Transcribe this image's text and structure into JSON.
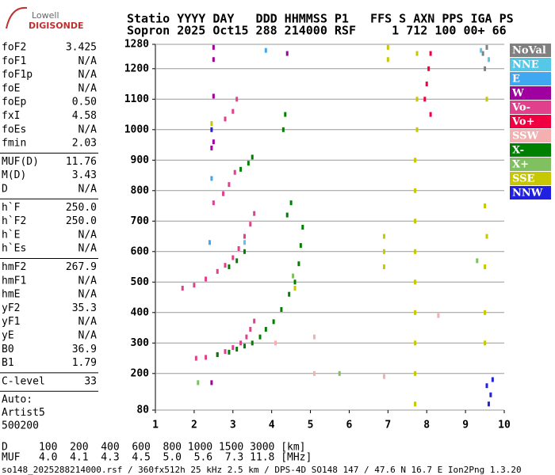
{
  "logo": {
    "top": "Lowell",
    "bottom": "DIGISONDE"
  },
  "header": [
    "Statio YYYY DAY   DDD HHMMSS P1   FFS S AXN PPS IGA PS",
    "Sopron 2025 Oct15 288 214000 RSF     1 712 100 00+ 66"
  ],
  "params": [
    [
      [
        "foF2",
        "3.425"
      ],
      [
        "foF1",
        "N/A"
      ],
      [
        "foF1p",
        "N/A"
      ],
      [
        "foE",
        "N/A"
      ],
      [
        "foEp",
        "0.50"
      ],
      [
        "fxI",
        "4.58"
      ],
      [
        "foEs",
        "N/A"
      ],
      [
        "fmin",
        "2.03"
      ]
    ],
    [
      [
        "MUF(D)",
        "11.76"
      ],
      [
        "M(D)",
        "3.43"
      ],
      [
        "D",
        "N/A"
      ]
    ],
    [
      [
        "h`F",
        "250.0"
      ],
      [
        "h`F2",
        "250.0"
      ],
      [
        "h`E",
        "N/A"
      ],
      [
        "h`Es",
        "N/A"
      ]
    ],
    [
      [
        "hmF2",
        "267.9"
      ],
      [
        "hmF1",
        "N/A"
      ],
      [
        "hmE",
        "N/A"
      ],
      [
        "yF2",
        "35.3"
      ],
      [
        "yF1",
        "N/A"
      ],
      [
        "yE",
        "N/A"
      ],
      [
        "B0",
        "36.9"
      ],
      [
        "B1",
        "1.79"
      ]
    ],
    [
      [
        "C-level",
        "33"
      ]
    ]
  ],
  "auto": [
    "Auto:",
    "Artist5",
    "500200"
  ],
  "footer": [
    "D     100  200  400  600  800 1000 1500 3000 [km]",
    "MUF   4.0  4.1  4.3  4.5  5.0  5.6  7.3 11.8 [MHz]",
    "so148_2025288214000.rsf / 360fx512h 25 kHz 2.5 km / DPS-4D SO148 147 / 47.6 N 16.7 E Ion2Png 1.3.20"
  ],
  "chart_data": {
    "type": "scatter",
    "xlim": [
      1,
      10
    ],
    "xticks": [
      1,
      2,
      3,
      4,
      5,
      6,
      7,
      8,
      9,
      10
    ],
    "ylim": [
      80,
      1280
    ],
    "yticks": [
      80,
      200,
      300,
      400,
      500,
      600,
      700,
      800,
      900,
      1000,
      1100,
      1200,
      1280
    ],
    "grid": true,
    "series": [
      {
        "name": "NoVal",
        "color": "#808080",
        "x": [
          9.45,
          9.5,
          9.55
        ],
        "y": [
          1250,
          1200,
          1270
        ]
      },
      {
        "name": "NNE",
        "color": "#55c8e8",
        "x": [
          9.4,
          9.6,
          3.3
        ],
        "y": [
          1260,
          1230,
          630
        ]
      },
      {
        "name": "E",
        "color": "#40a8f0",
        "x": [
          2.4,
          3.85,
          2.45
        ],
        "y": [
          630,
          1260,
          840
        ]
      },
      {
        "name": "W",
        "color": "#a000a0",
        "x": [
          2.5,
          2.5,
          2.5,
          2.45,
          2.5,
          2.45,
          4.4
        ],
        "y": [
          1270,
          1230,
          1110,
          940,
          960,
          170,
          1250
        ]
      },
      {
        "name": "Vo-",
        "color": "#e0408c",
        "x": [
          2.05,
          2.3,
          2.6,
          2.8,
          3.0,
          3.2,
          3.35,
          3.45,
          3.55,
          1.7,
          2.0,
          2.3,
          2.6,
          2.8,
          3.0,
          3.15,
          3.3,
          3.45,
          3.55,
          2.5,
          2.75,
          2.9,
          3.05,
          2.8,
          3.0,
          3.1
        ],
        "y": [
          250,
          253,
          262,
          272,
          285,
          300,
          320,
          345,
          372,
          480,
          490,
          510,
          535,
          555,
          580,
          610,
          650,
          690,
          725,
          760,
          790,
          820,
          860,
          1035,
          1060,
          1100
        ]
      },
      {
        "name": "Vo+",
        "color": "#f00040",
        "x": [
          8.0,
          8.05,
          8.1,
          7.95,
          8.1
        ],
        "y": [
          1150,
          1200,
          1250,
          1100,
          1050
        ]
      },
      {
        "name": "SSW",
        "color": "#f4b0b0",
        "x": [
          4.1,
          6.9,
          5.1,
          5.1,
          8.3
        ],
        "y": [
          300,
          190,
          320,
          200,
          390
        ]
      },
      {
        "name": "X-",
        "color": "#008000",
        "x": [
          2.6,
          2.9,
          3.1,
          3.3,
          3.5,
          3.7,
          3.85,
          4.05,
          4.25,
          4.45,
          4.6,
          4.7,
          4.75,
          4.8,
          2.9,
          3.1,
          3.3,
          4.4,
          4.5,
          3.2,
          3.4,
          3.5,
          4.3,
          4.35
        ],
        "y": [
          262,
          270,
          280,
          290,
          300,
          320,
          345,
          370,
          410,
          460,
          500,
          560,
          620,
          680,
          550,
          570,
          600,
          720,
          760,
          870,
          890,
          910,
          1000,
          1050
        ]
      },
      {
        "name": "X+",
        "color": "#80c060",
        "x": [
          5.75,
          9.3,
          4.55,
          2.1
        ],
        "y": [
          200,
          570,
          520,
          170
        ]
      },
      {
        "name": "SSE",
        "color": "#c8c800",
        "x": [
          7.7,
          7.7,
          7.7,
          7.7,
          7.7,
          7.7,
          7.7,
          7.7,
          7.7,
          7.75,
          7.75,
          7.75,
          9.5,
          9.5,
          9.5,
          9.55,
          9.5,
          9.55,
          6.9,
          6.9,
          6.9,
          4.6,
          2.45,
          7.0,
          7.0
        ],
        "y": [
          100,
          200,
          300,
          400,
          500,
          600,
          700,
          800,
          900,
          1000,
          1100,
          1250,
          300,
          400,
          550,
          650,
          750,
          1100,
          550,
          600,
          650,
          480,
          1020,
          1270,
          1230
        ]
      },
      {
        "name": "NNW",
        "color": "#2020e0",
        "x": [
          9.6,
          9.65,
          9.55,
          9.7,
          2.45
        ],
        "y": [
          100,
          130,
          160,
          180,
          1000
        ]
      }
    ]
  }
}
